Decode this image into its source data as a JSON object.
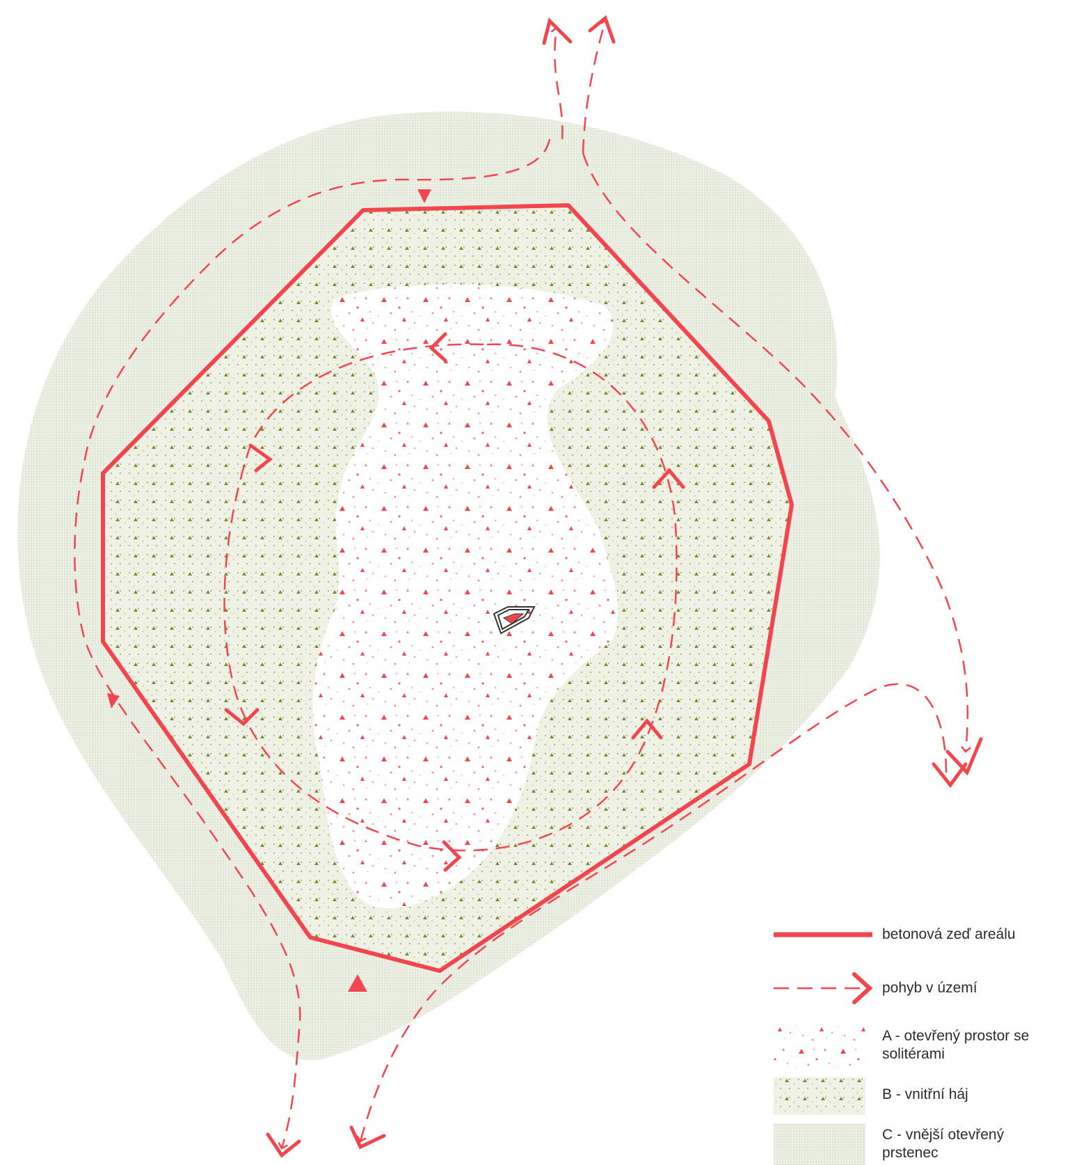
{
  "colors": {
    "accent": "#f2454e",
    "outer_ring": "#eceee3",
    "grove_dot": "#7a8a2c",
    "building_outline": "#333333"
  },
  "legend": {
    "items": [
      {
        "key": "wall",
        "label": "betonová zeď areálu"
      },
      {
        "key": "movement",
        "label": "pohyb v území"
      },
      {
        "key": "zone_a",
        "label": "A - otevřený prostor se solitérami"
      },
      {
        "key": "zone_b",
        "label": "B - vnitřní háj"
      },
      {
        "key": "zone_c",
        "label": "C - vnější otevřený prstenec"
      }
    ]
  }
}
